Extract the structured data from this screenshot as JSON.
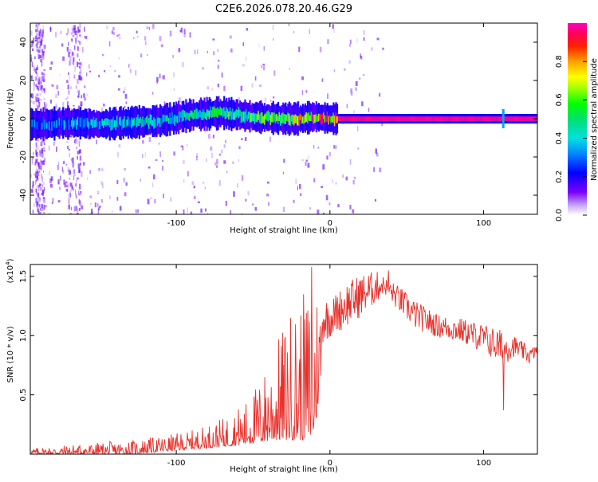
{
  "title": "C2E6.2026.078.20.46.G29",
  "chart_data": [
    {
      "type": "heatmap",
      "name": "spectrogram",
      "xlabel": "Height of straight line (km)",
      "ylabel": "Frequency (Hz)",
      "xlim": [
        -195,
        135
      ],
      "ylim": [
        -50,
        50
      ],
      "xticks": [
        -100,
        0,
        100
      ],
      "yticks": [
        -40,
        -20,
        0,
        20,
        40
      ],
      "colorbar": {
        "label": "Normalized spectral amplitude",
        "range": [
          0,
          1
        ],
        "ticks": [
          "0.0",
          "0.2",
          "0.4",
          "0.6",
          "0.8"
        ],
        "tick_values": [
          0.0,
          0.2,
          0.4,
          0.6,
          0.8
        ]
      },
      "ridge": {
        "description": "dominant frequency track",
        "x": [
          -190,
          -170,
          -150,
          -130,
          -110,
          -90,
          -70,
          -50,
          -30,
          -20,
          -10,
          0,
          5,
          40,
          80,
          110,
          130
        ],
        "y": [
          -3,
          -2,
          -3,
          -2,
          -1,
          2,
          3,
          1,
          0,
          0,
          1,
          0,
          0,
          0,
          0,
          0,
          0
        ],
        "amplitude": [
          0.3,
          0.35,
          0.4,
          0.4,
          0.45,
          0.5,
          0.55,
          0.55,
          0.6,
          0.8,
          0.85,
          0.95,
          0.97,
          0.98,
          0.98,
          0.98,
          0.98
        ]
      }
    },
    {
      "type": "line",
      "name": "snr",
      "xlabel": "Height of straight line (km)",
      "ylabel": "SNR (10 * v/v)",
      "y_multiplier": "(x10",
      "y_multiplier_exp": "4",
      "y_multiplier_close": ")",
      "xlim": [
        -195,
        135
      ],
      "ylim": [
        0,
        1.6
      ],
      "xticks": [
        -100,
        0,
        100
      ],
      "yticks": [
        "0.5",
        "1.0",
        "1.5"
      ],
      "ytick_values": [
        0.5,
        1.0,
        1.5
      ],
      "color": "#e8302b",
      "envelope": {
        "x": [
          -195,
          -170,
          -150,
          -130,
          -110,
          -90,
          -70,
          -55,
          -45,
          -35,
          -25,
          -15,
          -10,
          -5,
          0,
          10,
          20,
          30,
          35,
          45,
          55,
          70,
          85,
          100,
          112,
          120,
          130,
          135
        ],
        "lo": [
          0.0,
          0.0,
          0.0,
          0.0,
          0.02,
          0.04,
          0.06,
          0.08,
          0.1,
          0.12,
          0.12,
          0.12,
          0.15,
          0.75,
          0.85,
          0.9,
          1.0,
          1.15,
          1.3,
          1.1,
          0.95,
          0.9,
          0.85,
          0.75,
          0.6,
          0.75,
          0.7,
          0.8
        ],
        "hi": [
          0.05,
          0.08,
          0.1,
          0.12,
          0.15,
          0.2,
          0.3,
          0.45,
          0.65,
          0.95,
          1.25,
          1.4,
          1.55,
          1.35,
          1.3,
          1.45,
          1.52,
          1.55,
          1.5,
          1.42,
          1.3,
          1.18,
          1.15,
          1.1,
          1.05,
          1.0,
          0.9,
          0.92
        ]
      },
      "notable_points": [
        {
          "x": -12,
          "y": 1.58
        },
        {
          "x": 38,
          "y": 1.55
        },
        {
          "x": 113,
          "y": 0.37
        }
      ]
    }
  ]
}
